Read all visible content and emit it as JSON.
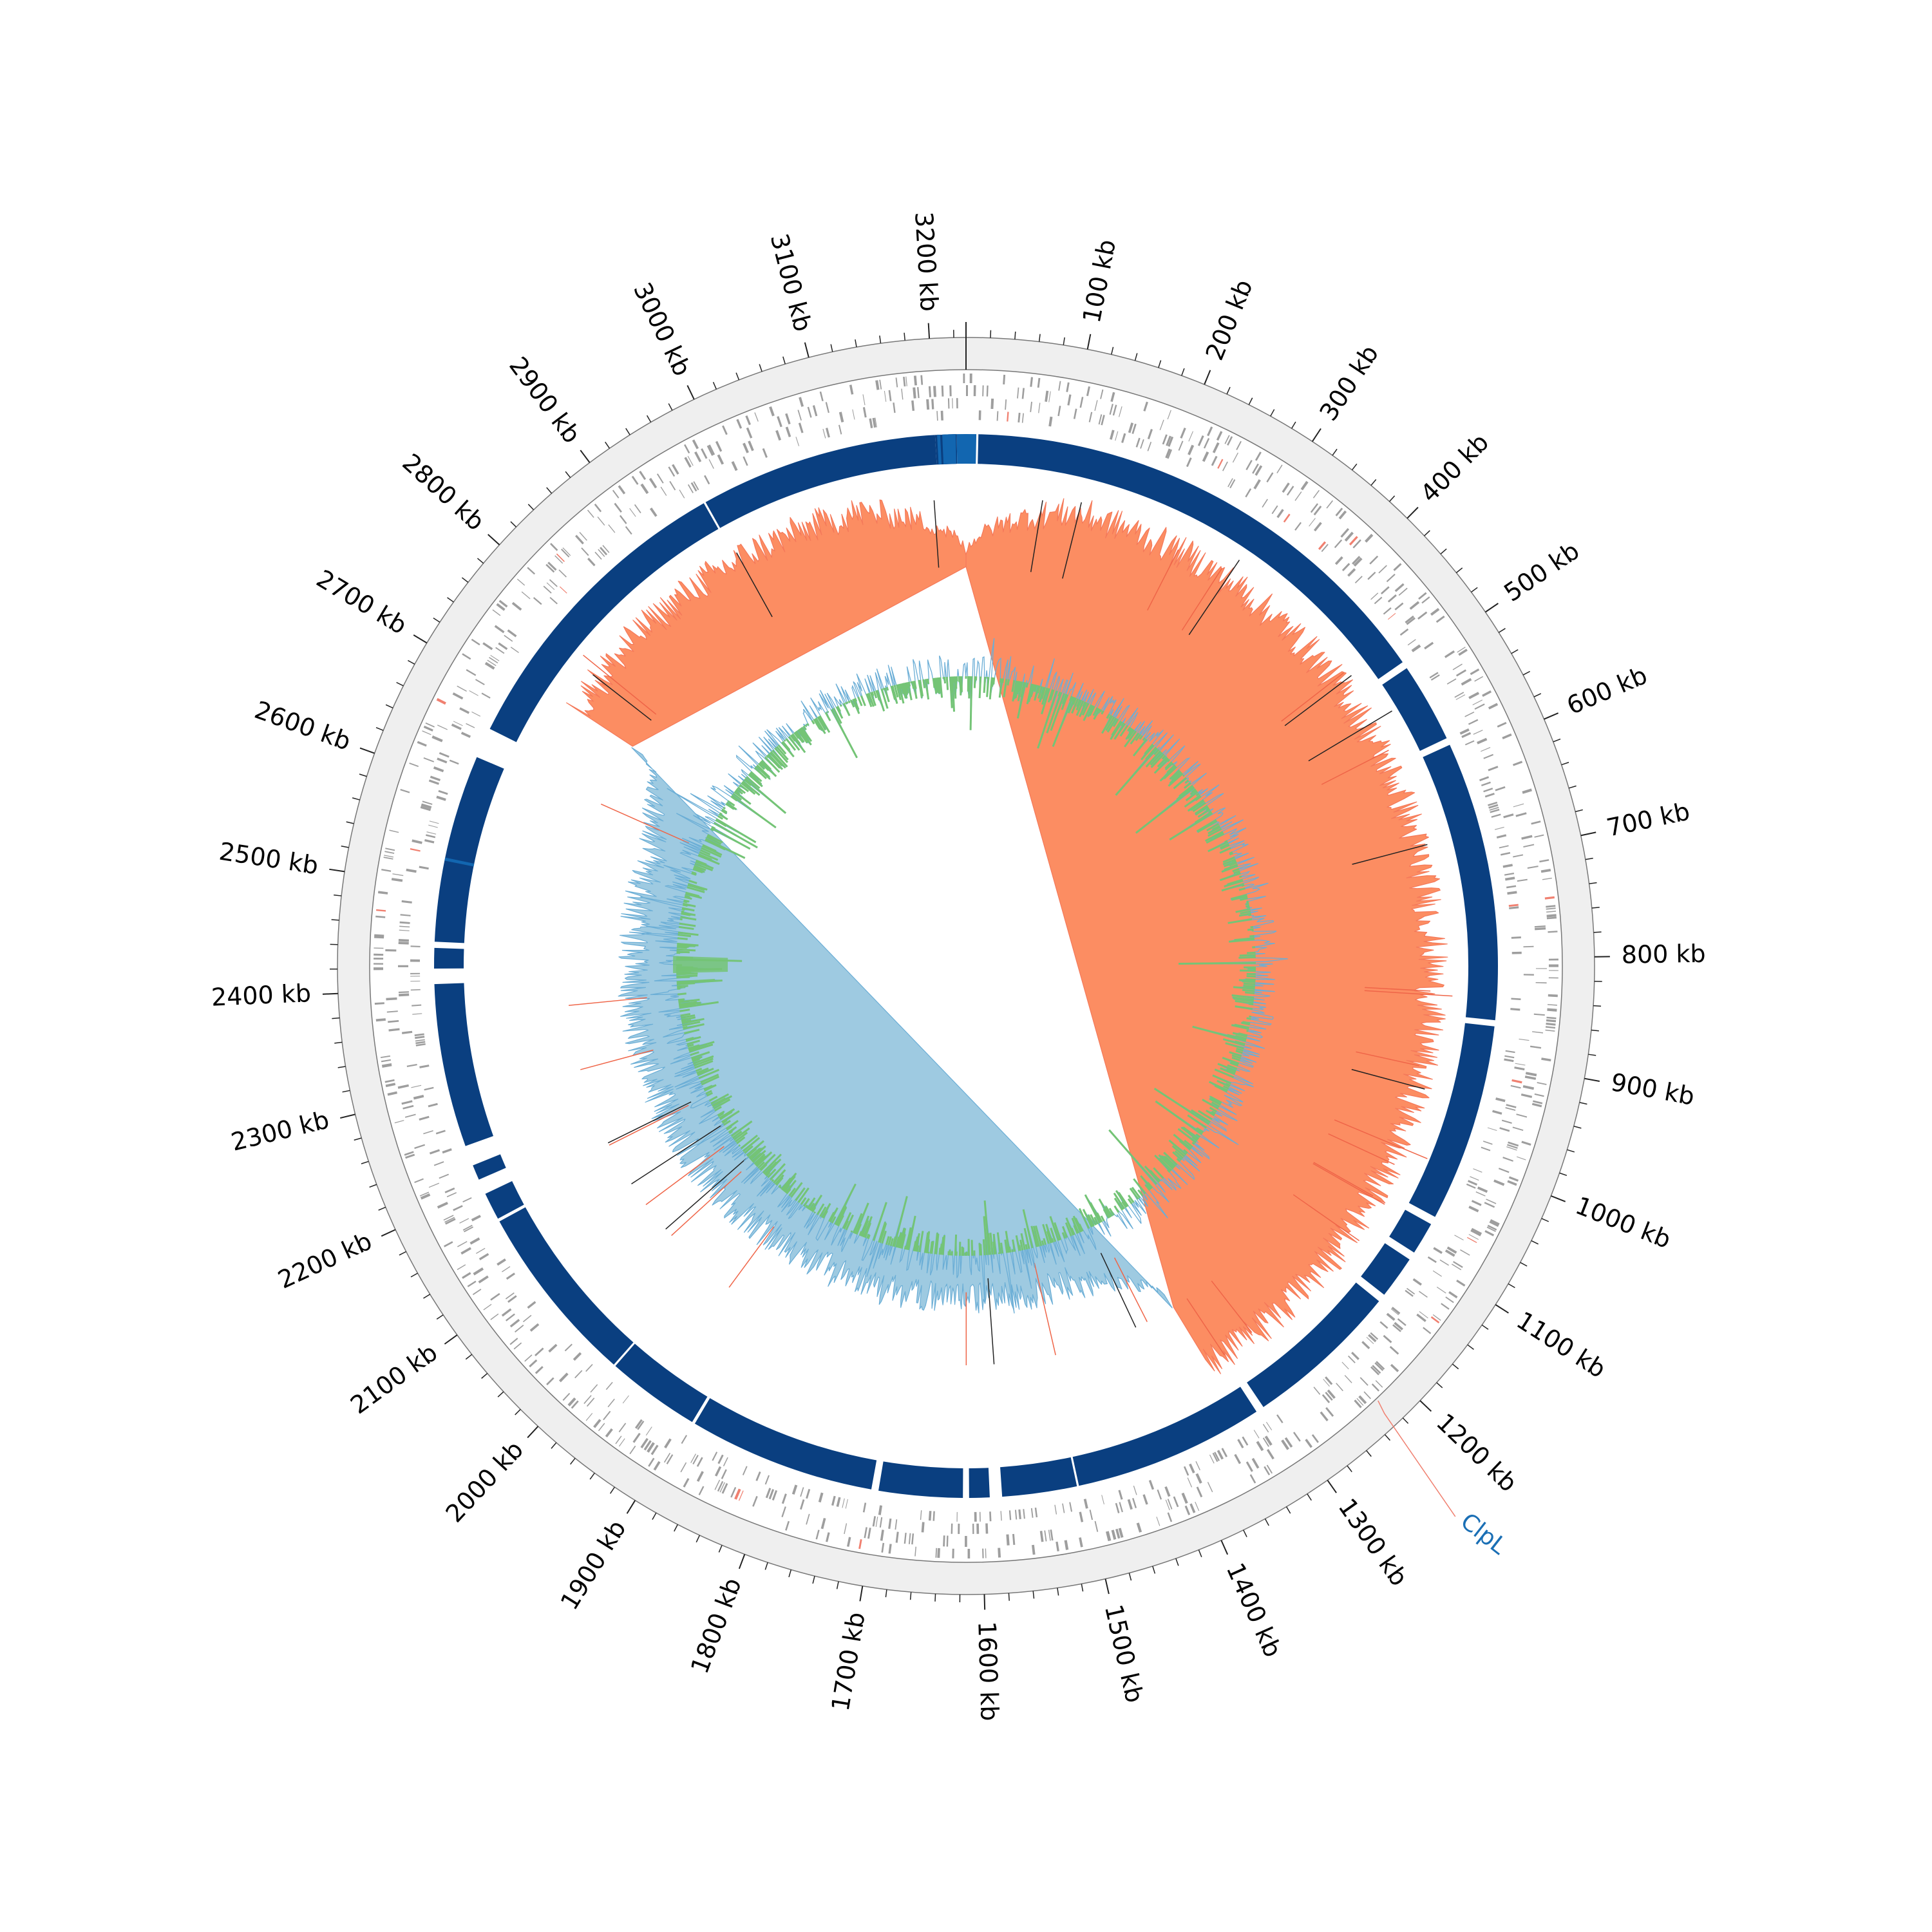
{
  "genome": {
    "length_kb": 3230,
    "tick_interval_kb": 100,
    "tick_labels": [
      "100 kb",
      "200 kb",
      "300 kb",
      "400 kb",
      "500 kb",
      "600 kb",
      "700 kb",
      "800 kb",
      "900 kb",
      "1000 kb",
      "1100 kb",
      "1200 kb",
      "1300 kb",
      "1400 kb",
      "1500 kb",
      "1600 kb",
      "1700 kb",
      "1800 kb",
      "1900 kb",
      "2000 kb",
      "2100 kb",
      "2200 kb",
      "2300 kb",
      "2400 kb",
      "2500 kb",
      "2600 kb",
      "2700 kb",
      "2800 kb",
      "2900 kb",
      "3000 kb",
      "3100 kb",
      "3200 kb"
    ]
  },
  "annotations": [
    {
      "label": "ClpL",
      "position_kb": 1225,
      "color": "#1a6fb5",
      "line_color": "#f08070"
    }
  ],
  "tracks": {
    "outer_band_color": "#efefef",
    "gene_color": "#9e9e9e",
    "rna_gene_color": "#f08070",
    "alignment": {
      "color": "#0a3f80",
      "highlight_color": "#1266b0",
      "gaps_kb": [
        [
          -30,
          -28
        ],
        [
          -25,
          -23
        ],
        [
          -10,
          -9
        ],
        [
          10,
          12
        ],
        [
          495,
          502
        ],
        [
          580,
          587
        ],
        [
          860,
          866
        ],
        [
          1060,
          1068
        ],
        [
          1100,
          1108
        ],
        [
          1150,
          1158
        ],
        [
          1310,
          1318
        ],
        [
          1505,
          1507
        ],
        [
          1580,
          1592
        ],
        [
          1612,
          1618
        ],
        [
          1700,
          1707
        ],
        [
          1890,
          1893
        ],
        [
          1985,
          1987
        ],
        [
          2165,
          2168
        ],
        [
          2195,
          2210
        ],
        [
          2225,
          2245
        ],
        [
          2405,
          2420
        ],
        [
          2440,
          2446
        ],
        [
          2630,
          2660
        ],
        [
          2965,
          2967
        ]
      ],
      "highlight_kb": [
        [
          -28,
          10
        ],
        [
          2525,
          2528
        ]
      ]
    },
    "gc_skew": {
      "positive_color": "#fc8d62",
      "negative_color": "#9ecae1",
      "line_pos": "#f4795a",
      "line_neg": "#6baed6",
      "switch_kb": [
        1335,
        2720
      ]
    },
    "gc_content": {
      "fill_color": "#74c476",
      "line_color": "#6baed6"
    }
  }
}
